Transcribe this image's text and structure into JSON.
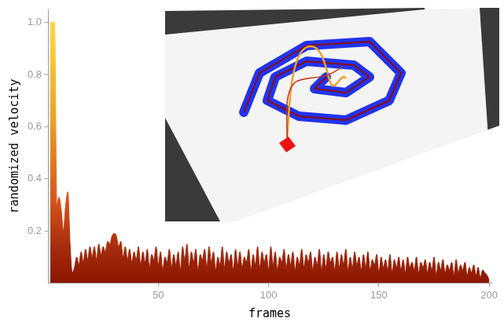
{
  "chart_data": {
    "type": "area",
    "x_label": "frames",
    "y_label": "randomized velocity",
    "x": [
      1,
      2,
      3,
      4,
      5,
      6,
      7,
      8,
      9,
      10,
      11,
      12,
      13,
      14,
      15,
      16,
      17,
      18,
      19,
      20,
      21,
      22,
      23,
      24,
      25,
      26,
      27,
      28,
      29,
      30,
      31,
      32,
      33,
      34,
      35,
      36,
      37,
      38,
      39,
      40,
      41,
      42,
      43,
      44,
      45,
      46,
      47,
      48,
      49,
      50,
      51,
      52,
      53,
      54,
      55,
      56,
      57,
      58,
      59,
      60,
      61,
      62,
      63,
      64,
      65,
      66,
      67,
      68,
      69,
      70,
      71,
      72,
      73,
      74,
      75,
      76,
      77,
      78,
      79,
      80,
      81,
      82,
      83,
      84,
      85,
      86,
      87,
      88,
      89,
      90,
      91,
      92,
      93,
      94,
      95,
      96,
      97,
      98,
      99,
      100,
      101,
      102,
      103,
      104,
      105,
      106,
      107,
      108,
      109,
      110,
      111,
      112,
      113,
      114,
      115,
      116,
      117,
      118,
      119,
      120,
      121,
      122,
      123,
      124,
      125,
      126,
      127,
      128,
      129,
      130,
      131,
      132,
      133,
      134,
      135,
      136,
      137,
      138,
      139,
      140,
      141,
      142,
      143,
      144,
      145,
      146,
      147,
      148,
      149,
      150,
      151,
      152,
      153,
      154,
      155,
      156,
      157,
      158,
      159,
      160,
      161,
      162,
      163,
      164,
      165,
      166,
      167,
      168,
      169,
      170,
      171,
      172,
      173,
      174,
      175,
      176,
      177,
      178,
      179,
      180,
      181,
      182,
      183,
      184,
      185,
      186,
      187,
      188,
      189,
      190,
      191,
      192,
      193,
      194,
      195,
      196,
      197,
      198,
      199,
      200
    ],
    "values": [
      1,
      1,
      1,
      0.3,
      0.33,
      0.28,
      0.2,
      0.3,
      0.35,
      0.15,
      0.04,
      0.06,
      0.1,
      0.07,
      0.12,
      0.08,
      0.13,
      0.09,
      0.14,
      0.1,
      0.14,
      0.09,
      0.15,
      0.11,
      0.14,
      0.12,
      0.16,
      0.15,
      0.18,
      0.19,
      0.18,
      0.14,
      0.16,
      0.1,
      0.14,
      0.09,
      0.13,
      0.08,
      0.12,
      0.09,
      0.14,
      0.07,
      0.12,
      0.08,
      0.13,
      0.06,
      0.11,
      0.09,
      0.14,
      0.07,
      0.12,
      0.05,
      0.1,
      0.08,
      0.13,
      0.06,
      0.11,
      0.07,
      0.12,
      0.05,
      0.14,
      0.09,
      0.15,
      0.06,
      0.12,
      0.08,
      0.13,
      0.05,
      0.11,
      0.09,
      0.13,
      0.06,
      0.14,
      0.08,
      0.12,
      0.05,
      0.1,
      0.07,
      0.14,
      0.06,
      0.12,
      0.08,
      0.11,
      0.05,
      0.13,
      0.07,
      0.12,
      0.06,
      0.1,
      0.08,
      0.13,
      0.05,
      0.11,
      0.07,
      0.14,
      0.06,
      0.12,
      0.08,
      0.11,
      0.05,
      0.14,
      0.07,
      0.12,
      0.05,
      0.1,
      0.08,
      0.13,
      0.06,
      0.11,
      0.07,
      0.12,
      0.05,
      0.1,
      0.07,
      0.13,
      0.06,
      0.11,
      0.08,
      0.12,
      0.05,
      0.1,
      0.07,
      0.13,
      0.05,
      0.11,
      0.06,
      0.12,
      0.08,
      0.1,
      0.05,
      0.12,
      0.06,
      0.11,
      0.07,
      0.13,
      0.05,
      0.1,
      0.06,
      0.12,
      0.07,
      0.1,
      0.05,
      0.11,
      0.06,
      0.12,
      0.05,
      0.09,
      0.07,
      0.11,
      0.04,
      0.1,
      0.06,
      0.09,
      0.05,
      0.11,
      0.04,
      0.09,
      0.06,
      0.1,
      0.05,
      0.09,
      0.04,
      0.1,
      0.06,
      0.08,
      0.05,
      0.1,
      0.04,
      0.08,
      0.06,
      0.09,
      0.04,
      0.08,
      0.05,
      0.1,
      0.03,
      0.08,
      0.05,
      0.09,
      0.04,
      0.07,
      0.05,
      0.08,
      0.03,
      0.09,
      0.04,
      0.07,
      0.05,
      0.08,
      0.03,
      0.06,
      0.04,
      0.07,
      0.03,
      0.06,
      0.02,
      0.05,
      0.04,
      0.03,
      0.01
    ],
    "color": "#8b1500",
    "xlim": [
      0,
      201
    ],
    "ylim": [
      0,
      1.05
    ],
    "xticks": [
      50,
      100,
      150,
      200
    ],
    "yticks": [
      0.2,
      0.4,
      0.6,
      0.8,
      {
        "value": 1,
        "label": "1.0"
      }
    ],
    "grid": false
  }
}
